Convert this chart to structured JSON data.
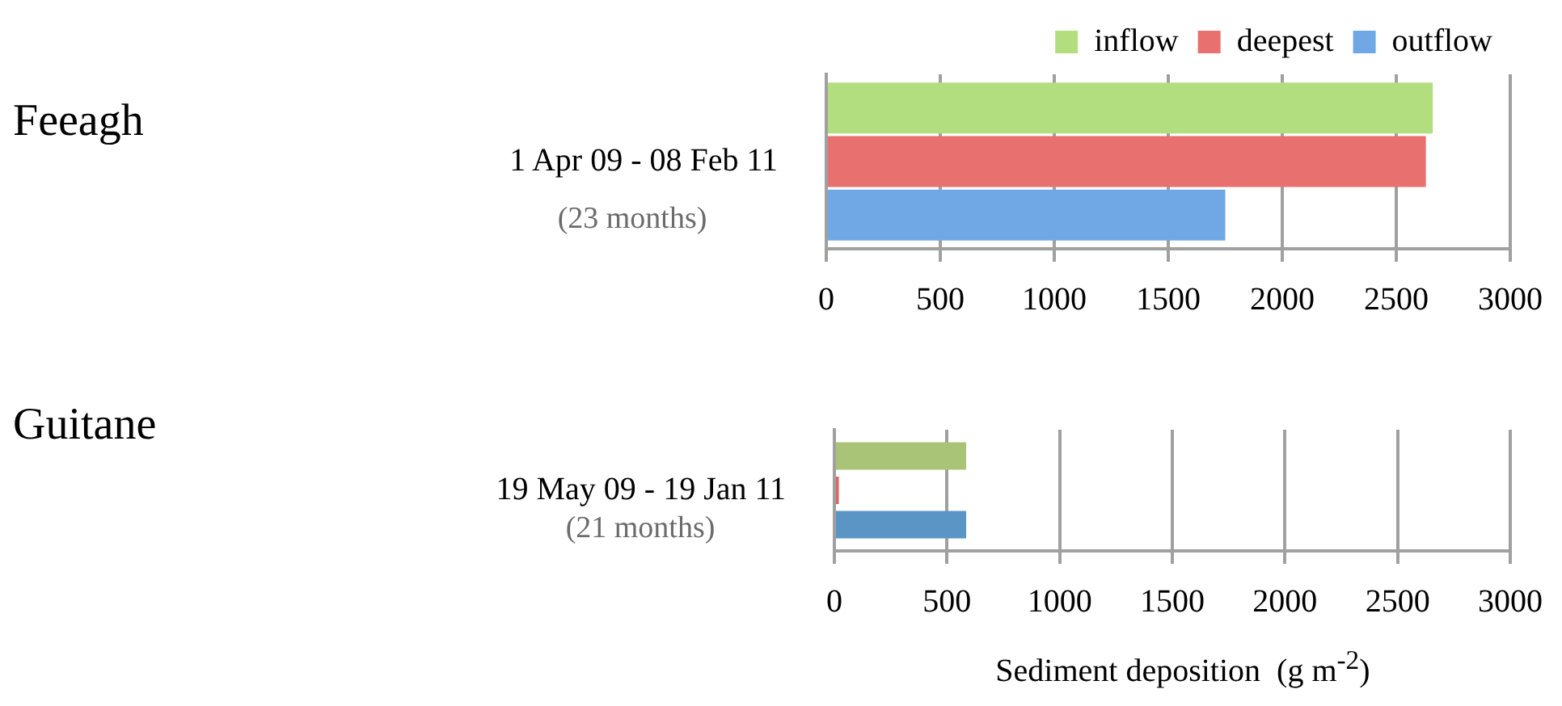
{
  "chart_data": [
    {
      "type": "bar",
      "orientation": "horizontal",
      "ylabel": "Feeagh",
      "categories": [
        "1 Apr 09 - 08 Feb 11"
      ],
      "annotations": [
        "(23 months)"
      ],
      "series": [
        {
          "name": "inflow",
          "color": "#b3de7f",
          "values": [
            2660
          ]
        },
        {
          "name": "deepest",
          "color": "#e8706e",
          "values": [
            2630
          ]
        },
        {
          "name": "outflow",
          "color": "#6fa8e4",
          "values": [
            1750
          ]
        }
      ],
      "xlim": [
        0,
        3000
      ],
      "xticks": [
        0,
        500,
        1000,
        1500,
        2000,
        2500,
        3000
      ],
      "grid": "x",
      "legend": "top right"
    },
    {
      "type": "bar",
      "orientation": "horizontal",
      "ylabel": "Guitane",
      "categories": [
        "19 May 09 - 19 Jan 11"
      ],
      "annotations": [
        "(21 months)"
      ],
      "series": [
        {
          "color": "#a9c476",
          "values": [
            585
          ]
        },
        {
          "color": "#e06666",
          "values": [
            20
          ]
        },
        {
          "color": "#5b95c5",
          "values": [
            585
          ]
        }
      ],
      "xlim": [
        0,
        3000
      ],
      "xticks": [
        0,
        500,
        1000,
        1500,
        2000,
        2500,
        3000
      ],
      "grid": "x",
      "xlabel": "Sediment deposition  (g m$^{-2}$)"
    }
  ]
}
